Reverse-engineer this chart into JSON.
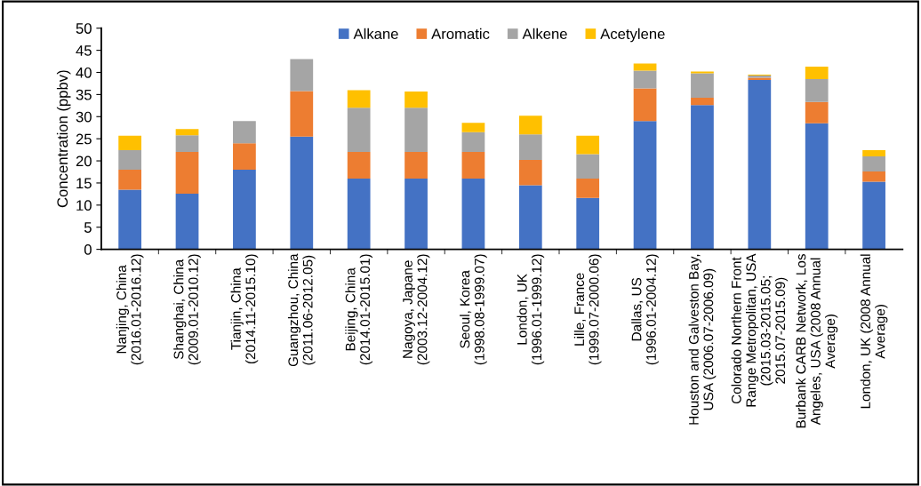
{
  "chart_data": {
    "type": "bar",
    "stacked": true,
    "ylabel": "Concentration (ppbv)",
    "categories": [
      "Nanjing, China (2016.01-2016.12)",
      "Shanghai, China (2009.01-2010.12)",
      "Tianjin, China (2014.11-2015.10)",
      "Guangzhou, China (2011.06-2012.05)",
      "Beijing, China (2014.01-2015.01)",
      "Nagoya, Japane (2003.12-2004.12)",
      "Seoul, Korea (1998.08-1999.07)",
      "London, UK (1996.01-1999.12)",
      "Lille, France (1999.07-2000.06)",
      "Dallas, US (1996.01-2004.12)",
      "Houston and Galveston Bay, USA (2006.07-2006.09)",
      "Colorado Northern Front Range Metropolitan, USA (2015.03-2015.05; 2015.07-2015.09)",
      "Burbank CARB Network, Los Angeles, USA (2008 Annual Average)",
      "London, UK (2008 Annual Average)"
    ],
    "series": [
      {
        "name": "Alkane",
        "color": "#4472c4",
        "values": [
          13.5,
          12.6,
          18,
          25.5,
          16,
          16,
          16,
          14.5,
          11.6,
          29,
          32.6,
          38.3,
          28.5,
          15.3
        ]
      },
      {
        "name": "Aromatic",
        "color": "#ed7d31",
        "values": [
          4.5,
          9.4,
          6,
          10.3,
          6,
          6,
          6,
          5.7,
          4.4,
          7.4,
          1.7,
          0.5,
          4.8,
          2.3
        ]
      },
      {
        "name": "Alkene",
        "color": "#a5a5a5",
        "values": [
          4.4,
          3.8,
          5,
          7.2,
          10,
          10,
          4.5,
          5.8,
          5.5,
          4,
          5.5,
          0.5,
          5.2,
          3.4
        ]
      },
      {
        "name": "Acetylene",
        "color": "#ffc000",
        "values": [
          3.3,
          1.4,
          0,
          0,
          4,
          3.7,
          2.1,
          4.2,
          4.2,
          1.6,
          0.4,
          0.2,
          2.8,
          1.4
        ]
      }
    ],
    "ylim": [
      0,
      50
    ],
    "yticks": [
      0,
      5,
      10,
      15,
      20,
      25,
      30,
      35,
      40,
      45,
      50
    ],
    "grid": false,
    "legend": "top"
  }
}
